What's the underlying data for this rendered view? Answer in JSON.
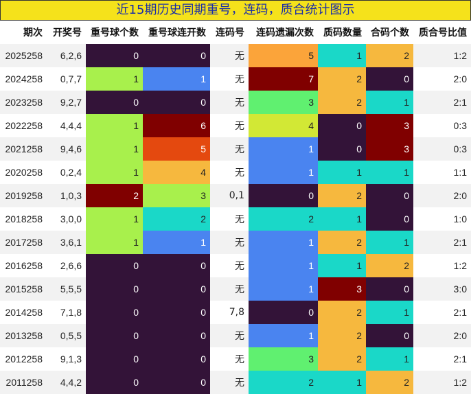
{
  "title": "近15期历史同期重号，连码，质合统计图示",
  "headers": [
    "期次",
    "开奖号",
    "重号球个数",
    "重号球连开数",
    "连码号",
    "连码遗漏次数",
    "质码数量",
    "合码个数",
    "质合号比值"
  ],
  "rows": [
    [
      "2025258",
      "6,2,6",
      "0",
      "0",
      "无",
      "5",
      "1",
      "2",
      "1:2"
    ],
    [
      "2024258",
      "0,7,7",
      "1",
      "1",
      "无",
      "7",
      "2",
      "0",
      "2:0"
    ],
    [
      "2023258",
      "9,2,7",
      "0",
      "0",
      "无",
      "3",
      "2",
      "1",
      "2:1"
    ],
    [
      "2022258",
      "4,4,4",
      "1",
      "6",
      "无",
      "4",
      "0",
      "3",
      "0:3"
    ],
    [
      "2021258",
      "9,4,6",
      "1",
      "5",
      "无",
      "1",
      "0",
      "3",
      "0:3"
    ],
    [
      "2020258",
      "0,2,4",
      "1",
      "4",
      "无",
      "1",
      "1",
      "1",
      "1:1"
    ],
    [
      "2019258",
      "1,0,3",
      "2",
      "3",
      "0,1",
      "0",
      "2",
      "0",
      "2:0"
    ],
    [
      "2018258",
      "3,0,0",
      "1",
      "2",
      "无",
      "2",
      "1",
      "0",
      "1:0"
    ],
    [
      "2017258",
      "3,6,1",
      "1",
      "1",
      "无",
      "1",
      "2",
      "1",
      "2:1"
    ],
    [
      "2016258",
      "2,6,6",
      "0",
      "0",
      "无",
      "1",
      "1",
      "2",
      "1:2"
    ],
    [
      "2015258",
      "5,5,5",
      "0",
      "0",
      "无",
      "1",
      "3",
      "0",
      "3:0"
    ],
    [
      "2014258",
      "7,1,8",
      "0",
      "0",
      "7,8",
      "0",
      "2",
      "1",
      "2:1"
    ],
    [
      "2013258",
      "0,5,5",
      "0",
      "0",
      "无",
      "1",
      "2",
      "0",
      "2:0"
    ],
    [
      "2012258",
      "9,1,3",
      "0",
      "0",
      "无",
      "3",
      "2",
      "1",
      "2:1"
    ],
    [
      "2011258",
      "4,4,2",
      "0",
      "0",
      "无",
      "2",
      "1",
      "2",
      "1:2"
    ]
  ],
  "colors": {
    "title_bg": "#f5e21b",
    "title_text": "#1a2ea8",
    "row_stripe": "#f2f2f2"
  },
  "heat_scale": {
    "0": "#331338",
    "1_repeat": "#a8f04c",
    "2_repeat": "#800000",
    "1": "#4a84f0",
    "2": "#1ad8c8",
    "3": "#60f070",
    "4": "#d2e835",
    "5": "#fba43a",
    "6": "#800000",
    "7": "#800000"
  }
}
